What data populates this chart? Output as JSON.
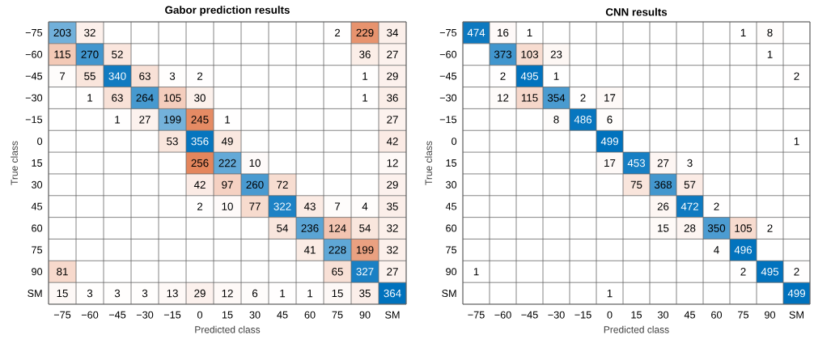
{
  "chart_data": [
    {
      "type": "heatmap",
      "title": "Gabor prediction results",
      "xlabel": "Predicted class",
      "ylabel": "True class",
      "data_labels": true,
      "categories": [
        "−75",
        "−60",
        "−45",
        "−30",
        "−15",
        "0",
        "15",
        "30",
        "45",
        "60",
        "75",
        "90",
        "SM"
      ],
      "y_categories": [
        "−75",
        "−60",
        "−45",
        "−30",
        "−15",
        "0",
        "15",
        "30",
        "45",
        "60",
        "75",
        "90",
        "SM"
      ],
      "cells": [
        [
          203,
          32,
          null,
          null,
          null,
          null,
          null,
          null,
          null,
          null,
          2,
          229,
          34
        ],
        [
          115,
          270,
          52,
          null,
          null,
          null,
          null,
          null,
          null,
          null,
          null,
          36,
          27
        ],
        [
          7,
          55,
          340,
          63,
          3,
          2,
          null,
          null,
          null,
          null,
          null,
          1,
          29
        ],
        [
          null,
          1,
          63,
          264,
          105,
          30,
          null,
          null,
          null,
          null,
          null,
          1,
          36
        ],
        [
          null,
          null,
          1,
          27,
          199,
          245,
          1,
          null,
          null,
          null,
          null,
          null,
          27
        ],
        [
          null,
          null,
          null,
          null,
          53,
          356,
          49,
          null,
          null,
          null,
          null,
          null,
          42
        ],
        [
          null,
          null,
          null,
          null,
          null,
          256,
          222,
          10,
          null,
          null,
          null,
          null,
          12
        ],
        [
          null,
          null,
          null,
          null,
          null,
          42,
          97,
          260,
          72,
          null,
          null,
          null,
          29
        ],
        [
          null,
          null,
          null,
          null,
          null,
          2,
          10,
          77,
          322,
          43,
          7,
          4,
          35
        ],
        [
          null,
          null,
          null,
          null,
          null,
          null,
          null,
          null,
          54,
          236,
          124,
          54,
          32
        ],
        [
          null,
          null,
          null,
          null,
          null,
          null,
          null,
          null,
          null,
          41,
          228,
          199,
          32
        ],
        [
          81,
          null,
          null,
          null,
          null,
          null,
          null,
          null,
          null,
          null,
          65,
          327,
          27
        ],
        [
          15,
          3,
          3,
          3,
          13,
          29,
          12,
          6,
          1,
          1,
          15,
          35,
          364
        ]
      ]
    },
    {
      "type": "heatmap",
      "title": "CNN results",
      "xlabel": "Predicted class",
      "ylabel": "True class",
      "data_labels": true,
      "categories": [
        "−75",
        "−60",
        "−45",
        "−30",
        "−15",
        "0",
        "15",
        "30",
        "45",
        "60",
        "75",
        "90",
        "SM"
      ],
      "y_categories": [
        "−75",
        "−60",
        "−45",
        "−30",
        "−15",
        "0",
        "15",
        "30",
        "45",
        "60",
        "75",
        "90",
        "SM"
      ],
      "cells": [
        [
          474,
          16,
          1,
          null,
          null,
          null,
          null,
          null,
          null,
          null,
          1,
          8,
          null
        ],
        [
          null,
          373,
          103,
          23,
          null,
          null,
          null,
          null,
          null,
          null,
          null,
          1,
          null
        ],
        [
          null,
          2,
          495,
          1,
          null,
          null,
          null,
          null,
          null,
          null,
          null,
          null,
          2
        ],
        [
          null,
          12,
          115,
          354,
          2,
          17,
          null,
          null,
          null,
          null,
          null,
          null,
          null
        ],
        [
          null,
          null,
          null,
          8,
          486,
          6,
          null,
          null,
          null,
          null,
          null,
          null,
          null
        ],
        [
          null,
          null,
          null,
          null,
          null,
          499,
          null,
          null,
          null,
          null,
          null,
          null,
          1
        ],
        [
          null,
          null,
          null,
          null,
          null,
          17,
          453,
          27,
          3,
          null,
          null,
          null,
          null
        ],
        [
          null,
          null,
          null,
          null,
          null,
          null,
          75,
          368,
          57,
          null,
          null,
          null,
          null
        ],
        [
          null,
          null,
          null,
          null,
          null,
          null,
          null,
          26,
          472,
          2,
          null,
          null,
          null
        ],
        [
          null,
          null,
          null,
          null,
          null,
          null,
          null,
          15,
          28,
          350,
          105,
          2,
          null
        ],
        [
          null,
          null,
          null,
          null,
          null,
          null,
          null,
          null,
          null,
          4,
          496,
          null,
          null
        ],
        [
          1,
          null,
          null,
          null,
          null,
          null,
          null,
          null,
          null,
          null,
          2,
          495,
          2
        ],
        [
          null,
          null,
          null,
          null,
          null,
          1,
          null,
          null,
          null,
          null,
          null,
          null,
          499
        ]
      ]
    }
  ]
}
